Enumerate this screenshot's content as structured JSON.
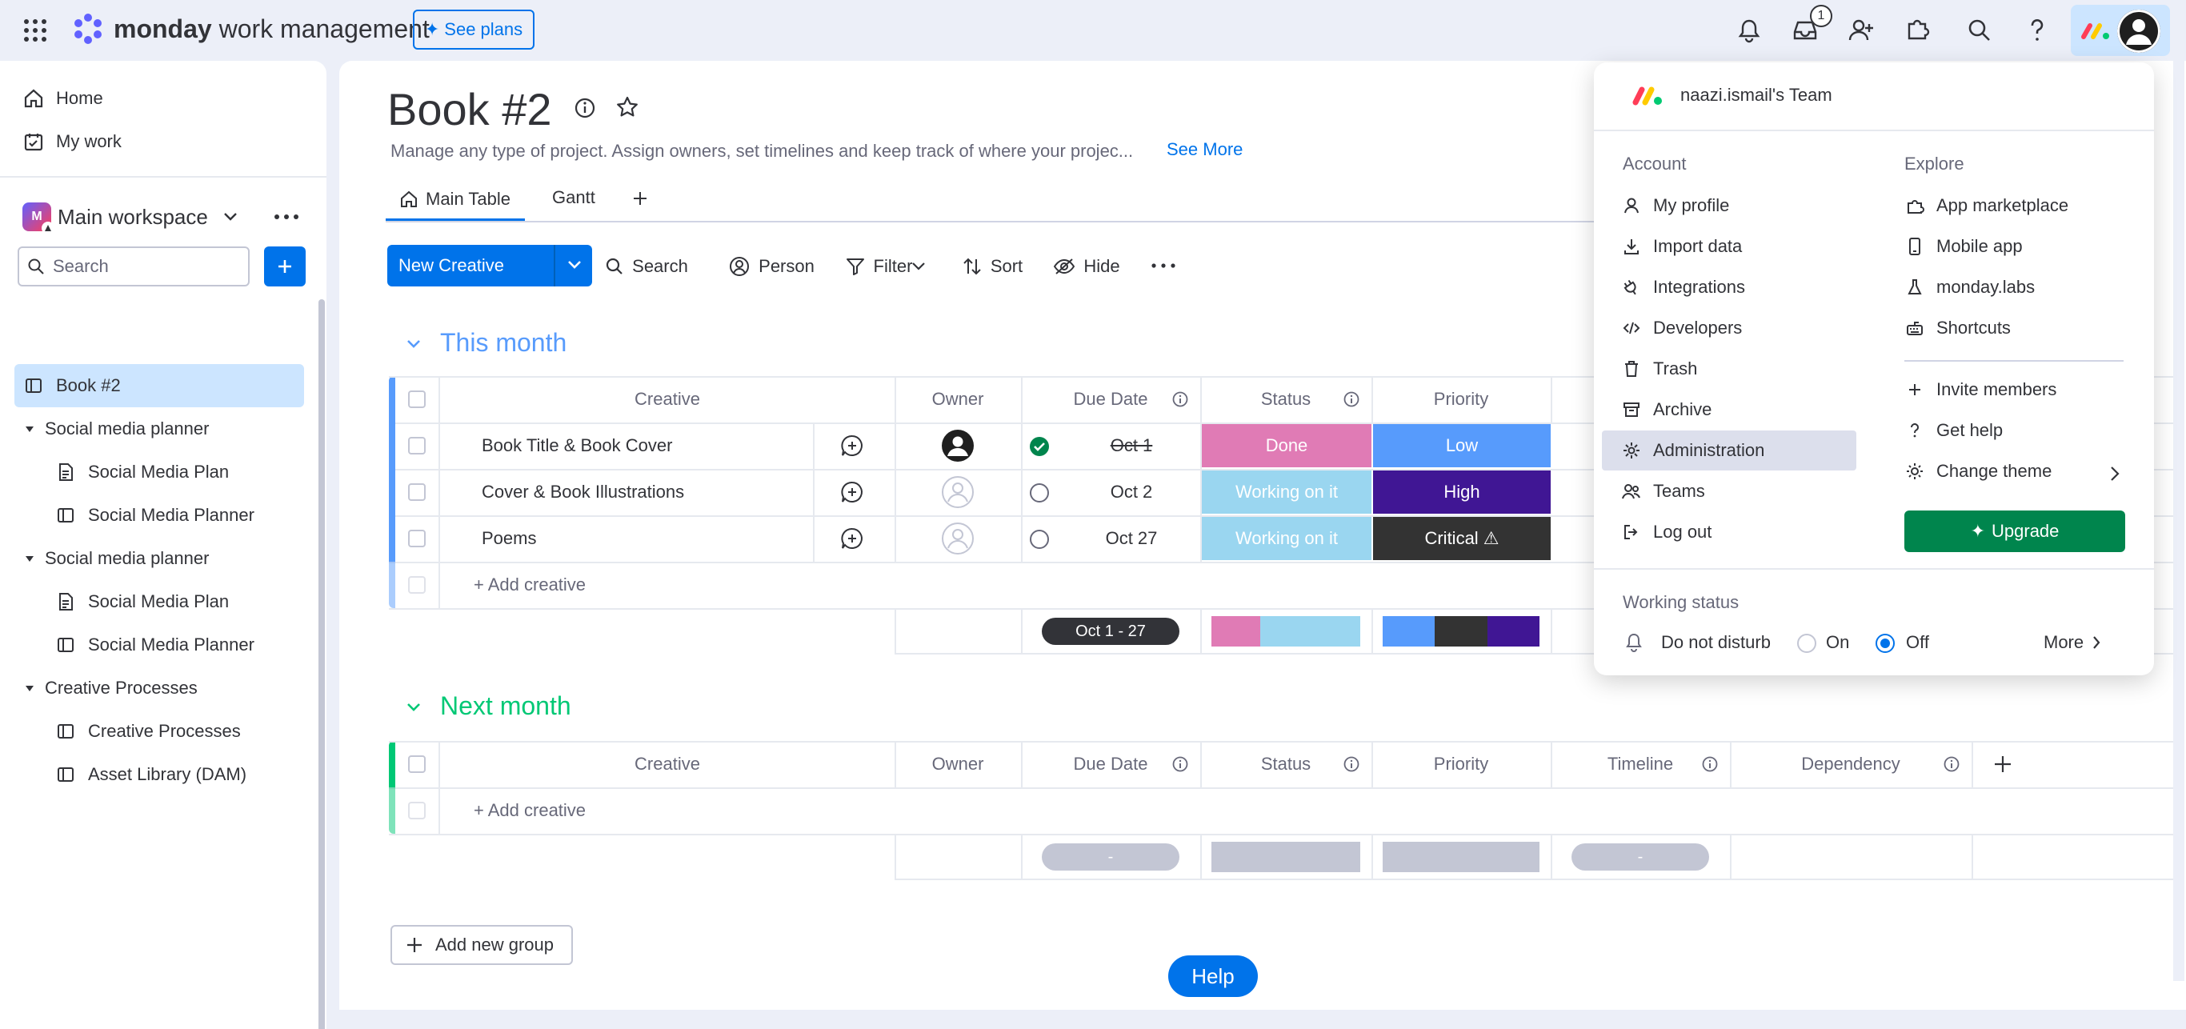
{
  "topbar": {
    "brand_bold": "monday",
    "brand_light": "work management",
    "see_plans": "See plans",
    "inbox_badge": "1"
  },
  "sidebar": {
    "home": "Home",
    "my_work": "My work",
    "workspace": "Main workspace",
    "search_placeholder": "Search",
    "items": [
      {
        "label": "Book #2",
        "type": "board",
        "active": true
      },
      {
        "label": "Social media planner",
        "type": "folder"
      },
      {
        "label": "Social Media Plan",
        "type": "doc"
      },
      {
        "label": "Social Media Planner",
        "type": "board"
      },
      {
        "label": "Social media planner",
        "type": "folder"
      },
      {
        "label": "Social Media Plan",
        "type": "doc"
      },
      {
        "label": "Social Media Planner",
        "type": "board"
      },
      {
        "label": "Creative Processes",
        "type": "folder"
      },
      {
        "label": "Creative Processes",
        "type": "board"
      },
      {
        "label": "Asset Library (DAM)",
        "type": "board"
      }
    ]
  },
  "board": {
    "title": "Book #2",
    "description": "Manage any type of project. Assign owners, set timelines and keep track of where your projec...",
    "see_more": "See More",
    "tabs": [
      "Main Table",
      "Gantt"
    ],
    "toolbar": {
      "new_item": "New Creative",
      "search": "Search",
      "person": "Person",
      "filter": "Filter",
      "sort": "Sort",
      "hide": "Hide"
    },
    "columns": {
      "creative": "Creative",
      "owner": "Owner",
      "due_date": "Due Date",
      "status": "Status",
      "priority": "Priority",
      "timeline": "Timeline",
      "dependency": "Dependency"
    },
    "groups": [
      {
        "title": "This month",
        "color": "#579bfc",
        "rows": [
          {
            "name": "Book Title & Book Cover",
            "due": "Oct 1",
            "due_done": true,
            "status": "Done",
            "status_color": "#e2445c",
            "priority": "Low",
            "priority_color": "#579bfc"
          },
          {
            "name": "Cover & Book Illustrations",
            "due": "Oct 2",
            "due_done": false,
            "status": "Working on it",
            "status_color": "#9ad6f0",
            "priority": "High",
            "priority_color": "#401694"
          },
          {
            "name": "Poems",
            "due": "Oct 27",
            "due_done": false,
            "status": "Working on it",
            "status_color": "#9ad6f0",
            "priority": "Critical ⚠",
            "priority_color": "#333333"
          }
        ],
        "add_item": "+ Add creative",
        "date_summary": "Oct 1 - 27"
      },
      {
        "title": "Next month",
        "color": "#00c875",
        "rows": [],
        "add_item": "+ Add creative",
        "date_summary": "-",
        "timeline_summary": "-"
      }
    ],
    "add_group": "Add new group",
    "help": "Help"
  },
  "menu": {
    "team": "naazi.ismail's Team",
    "account_title": "Account",
    "explore_title": "Explore",
    "account_items": [
      "My profile",
      "Import data",
      "Integrations",
      "Developers",
      "Trash",
      "Archive",
      "Administration",
      "Teams",
      "Log out"
    ],
    "explore_items": [
      "App marketplace",
      "Mobile app",
      "monday.labs",
      "Shortcuts"
    ],
    "extra_items": [
      "Invite members",
      "Get help",
      "Change theme"
    ],
    "upgrade": "Upgrade",
    "working_status_title": "Working status",
    "do_not_disturb": "Do not disturb",
    "on": "On",
    "off": "Off",
    "more": "More"
  },
  "colors": {
    "primary": "#0073ea",
    "upgrade": "#00854d",
    "done": "#e2445c",
    "working": "#9ad6f0",
    "low": "#579bfc",
    "high": "#401694",
    "critical": "#333333"
  }
}
